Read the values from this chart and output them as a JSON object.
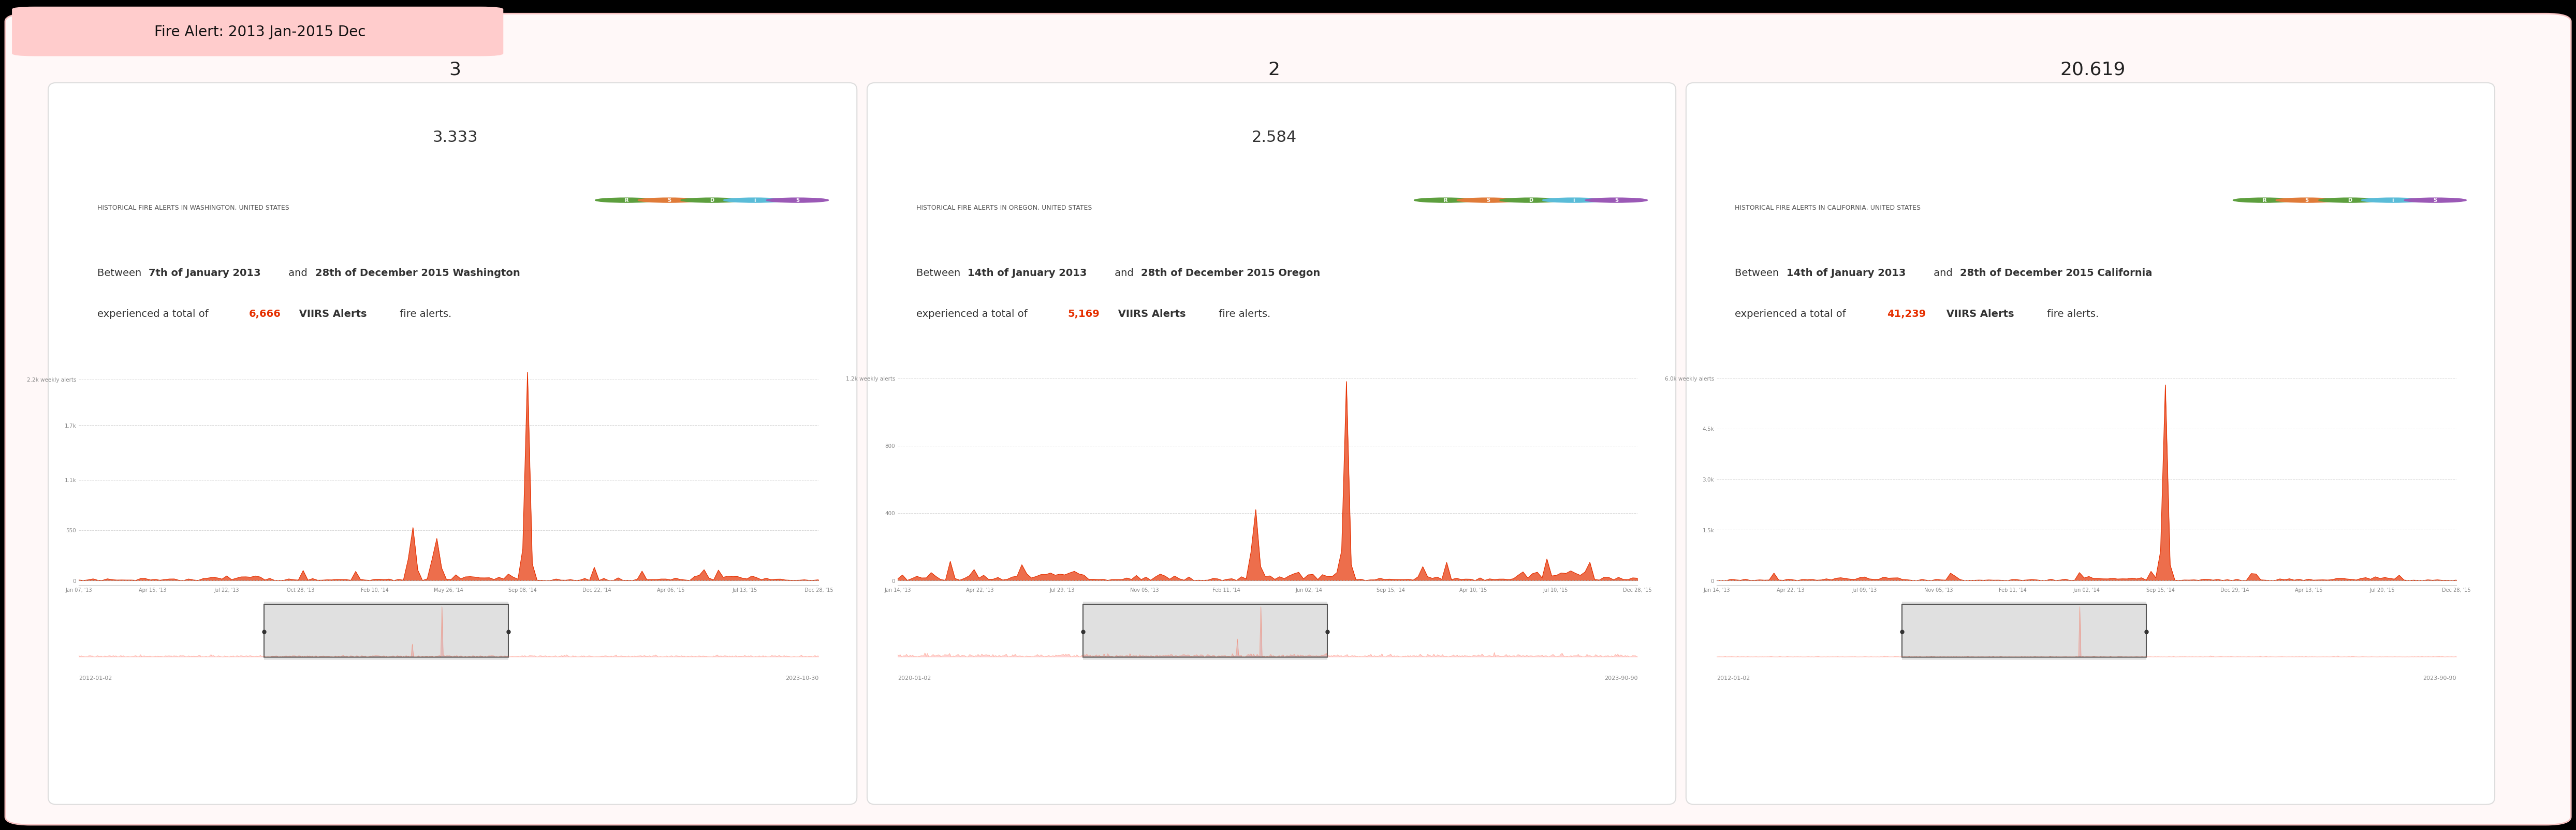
{
  "title": "Fire Alert: 2013 Jan-2015 Dec",
  "title_bg": "#ffcccc",
  "outer_bg": "#000000",
  "inner_bg": "#fff8f8",
  "panel_bg": "#ffffff",
  "border_color": "#e8e8e8",
  "panels": [
    {
      "rank": "3",
      "score": "3.333",
      "header": "HISTORICAL FIRE ALERTS IN WASHINGTON, UNITED STATES",
      "desc_prefix": "Between ",
      "desc_bold1": "7th of January 2013",
      "desc_mid1": " and ",
      "desc_bold2": "28th of December 2015 Washington",
      "desc_end1": "\nexperienced a total of ",
      "desc_highlight": "6,666",
      "desc_end2": " VIIRS Alerts",
      "desc_final": " fire alerts.",
      "yticks": [
        "0",
        "550",
        "1.1k",
        "1.7k",
        "2.2k weekly alerts"
      ],
      "ytick_vals": [
        0,
        550,
        1100,
        1700,
        2200
      ],
      "ymax": 2400,
      "xtick_labels": [
        "Jan 07, '13",
        "Apr 15, '13",
        "Jul 22, '13",
        "Oct 28, '13",
        "Feb 10, '14",
        "May 26, '14",
        "Sep 08, '14",
        "Dec 22, '14",
        "Apr 06, '15",
        "Jul 13, '15",
        "Dec 28, '15"
      ],
      "mini_xleft": "2012-01-02",
      "mini_xright": "2023-10-30",
      "peak_week": 94,
      "peak_val": 2280,
      "secondary_peak_week": 70,
      "secondary_peak_val": 580,
      "secondary_peak2_week": 75,
      "secondary_peak2_val": 460,
      "highlight_color": "#e63000"
    },
    {
      "rank": "2",
      "score": "2.584",
      "header": "HISTORICAL FIRE ALERTS IN OREGON, UNITED STATES",
      "desc_prefix": "Between ",
      "desc_bold1": "14th of January 2013",
      "desc_mid1": " and ",
      "desc_bold2": "28th of December 2015 Oregon",
      "desc_end1": "\nexperienced a total of ",
      "desc_highlight": "5,169",
      "desc_end2": " VIIRS Alerts",
      "desc_final": " fire alerts.",
      "yticks": [
        "0",
        "400",
        "800",
        "1.2k weekly alerts"
      ],
      "ytick_vals": [
        0,
        400,
        800,
        1200
      ],
      "ymax": 1300,
      "xtick_labels": [
        "Jan 14, '13",
        "Apr 22, '13",
        "Jul 29, '13",
        "Nov 05, '13",
        "Feb 11, '14",
        "Jun 02, '14",
        "Sep 15, '14",
        "Apr 10, '15",
        "Jul 10, '15",
        "Dec 28, '15"
      ],
      "mini_xleft": "2020-01-02",
      "mini_xright": "2023-90-90",
      "peak_week": 94,
      "peak_val": 1180,
      "secondary_peak_week": 75,
      "secondary_peak_val": 420,
      "highlight_color": "#e63000"
    },
    {
      "rank": "20.619",
      "score": "",
      "header": "HISTORICAL FIRE ALERTS IN CALIFORNIA, UNITED STATES",
      "desc_prefix": "Between ",
      "desc_bold1": "14th of January 2013",
      "desc_mid1": " and ",
      "desc_bold2": "28th of December 2015 California",
      "desc_end1": "\nexperienced a total of ",
      "desc_highlight": "41,239",
      "desc_end2": " VIIRS Alerts",
      "desc_final": " fire alerts.",
      "yticks": [
        "0",
        "1.5k",
        "3.0k",
        "4.5k",
        "6.0k weekly alerts"
      ],
      "ytick_vals": [
        0,
        1500,
        3000,
        4500,
        6000
      ],
      "ymax": 6500,
      "xtick_labels": [
        "Jan 14, '13",
        "Apr 22, '13",
        "Jul 09, '13",
        "Nov 05, '13",
        "Feb 11, '14",
        "Jun 02, '14",
        "Sep 15, '14",
        "Dec 29, '14",
        "Apr 13, '15",
        "Jul 20, '15",
        "Dec 28, '15"
      ],
      "mini_xleft": "2012-01-02",
      "mini_xright": "2023-90-90",
      "peak_week": 94,
      "peak_val": 5800,
      "highlight_color": "#e63000"
    }
  ]
}
